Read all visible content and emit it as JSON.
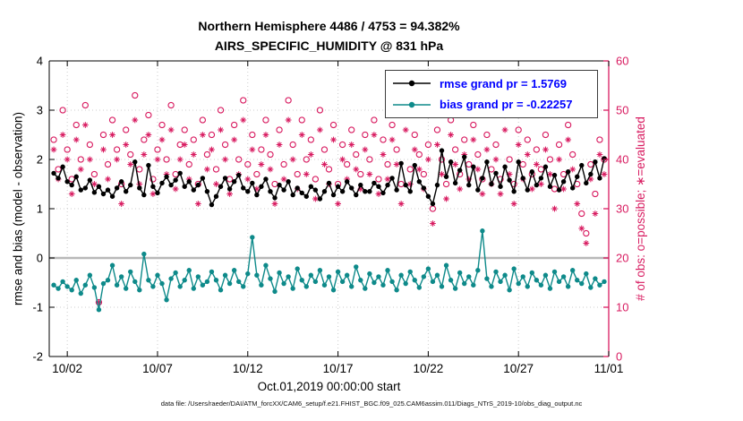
{
  "title": {
    "line1": "Northern Hemisphere 4486 / 4753 = 94.382%",
    "line2": "AIRS_SPECIFIC_HUMIDITY @ 831 hPa"
  },
  "axis_labels": {
    "left": "rmse and bias (model - observation)",
    "right": "# of obs: o=possible; ∗=evaluated",
    "x": "Oct.01,2019 00:00:00 start"
  },
  "legend": {
    "items": [
      {
        "name": "rmse",
        "label": "rmse grand pr = 1.5769"
      },
      {
        "name": "bias",
        "label": "bias grand pr = -0.22257"
      }
    ]
  },
  "footer": {
    "data_file": "data file: /Users/raeder/DAI/ATM_forcXX/CAM6_setup/f.e21.FHIST_BGC.f09_025.CAM6assim.011/Diags_NTrS_2019-10/obs_diag_output.nc"
  },
  "colors": {
    "rmse": "#000000",
    "bias": "#0e8a8a",
    "obs": "#d81b60",
    "legend_text": "#0000ff",
    "zero_line": "#b8b8b8",
    "grid": "#cccccc",
    "axis_black": "#000000"
  },
  "chart_data": {
    "type": "line",
    "title": "Northern Hemisphere 4486 / 4753 = 94.382% — AIRS_SPECIFIC_HUMIDITY @ 831 hPa",
    "x_axis_label": "Oct.01,2019 00:00:00 start",
    "left_y_label": "rmse and bias (model - observation)",
    "right_y_label": "# of obs: o=possible; ∗=evaluated",
    "x_start_day": 1.25,
    "x_step_days": 0.25,
    "x_axis_range_days": [
      1,
      32
    ],
    "x_tick_days": [
      2,
      7,
      12,
      17,
      22,
      27,
      32
    ],
    "x_tick_labels": [
      "10/02",
      "10/07",
      "10/12",
      "10/17",
      "10/22",
      "10/27",
      "11/01"
    ],
    "left_ylim": [
      -2,
      4
    ],
    "left_yticks": [
      -2,
      -1,
      0,
      1,
      2,
      3,
      4
    ],
    "right_ylim": [
      0,
      60
    ],
    "right_yticks": [
      0,
      10,
      20,
      30,
      40,
      50,
      60
    ],
    "grid": true,
    "legend_position": "top-right-inside",
    "summary": {
      "rmse_grand_prior": 1.5769,
      "bias_grand_prior": -0.22257,
      "obs_evaluated_total": 4486,
      "obs_possible_total": 4753,
      "percent_evaluated": 94.382
    },
    "series": [
      {
        "name": "obs_possible",
        "axis": "right",
        "marker": "open-circle",
        "line": false,
        "color": "#d81b60",
        "values": [
          44,
          38,
          50,
          42,
          36,
          47,
          40,
          51,
          43,
          37,
          11,
          45,
          39,
          48,
          42,
          35,
          46,
          41,
          53,
          38,
          44,
          49,
          36,
          42,
          47,
          40,
          51,
          37,
          43,
          46,
          39,
          44,
          35,
          48,
          41,
          45,
          38,
          50,
          43,
          36,
          47,
          40,
          52,
          39,
          45,
          37,
          42,
          48,
          41,
          35,
          46,
          39,
          52,
          43,
          37,
          48,
          40,
          44,
          36,
          50,
          42,
          38,
          47,
          35,
          43,
          39,
          46,
          41,
          37,
          45,
          40,
          48,
          36,
          44,
          39,
          47,
          42,
          35,
          50,
          38,
          45,
          41,
          37,
          43,
          30,
          46,
          40,
          35,
          48,
          42,
          37,
          44,
          39,
          47,
          41,
          36,
          45,
          38,
          43,
          36,
          49,
          40,
          35,
          46,
          39,
          44,
          37,
          42,
          38,
          45,
          40,
          34,
          43,
          37,
          47,
          41,
          35,
          29,
          25,
          39,
          33,
          44,
          40
        ]
      },
      {
        "name": "obs_evaluated",
        "axis": "right",
        "marker": "asterisk",
        "line": false,
        "color": "#d81b60",
        "values": [
          42,
          36,
          45,
          40,
          33,
          44,
          38,
          47,
          40,
          35,
          11,
          42,
          36,
          45,
          40,
          31,
          43,
          39,
          48,
          35,
          41,
          45,
          33,
          40,
          44,
          37,
          46,
          34,
          40,
          43,
          36,
          41,
          31,
          45,
          38,
          42,
          35,
          46,
          40,
          33,
          44,
          37,
          48,
          36,
          42,
          34,
          39,
          45,
          38,
          31,
          43,
          36,
          48,
          40,
          34,
          45,
          37,
          41,
          32,
          46,
          39,
          35,
          44,
          31,
          40,
          36,
          43,
          38,
          34,
          42,
          37,
          45,
          33,
          41,
          36,
          44,
          39,
          31,
          46,
          35,
          42,
          38,
          34,
          40,
          27,
          43,
          37,
          32,
          45,
          39,
          34,
          41,
          36,
          44,
          38,
          33,
          42,
          35,
          40,
          33,
          46,
          37,
          31,
          43,
          36,
          41,
          34,
          39,
          35,
          42,
          37,
          30,
          40,
          34,
          44,
          38,
          31,
          26,
          23,
          36,
          29,
          41,
          37
        ]
      },
      {
        "name": "rmse",
        "axis": "left",
        "marker": "filled-circle",
        "line": true,
        "color": "#000000",
        "values": [
          1.72,
          1.62,
          1.85,
          1.55,
          1.48,
          1.65,
          1.38,
          1.42,
          1.58,
          1.33,
          1.45,
          1.3,
          1.38,
          1.25,
          1.42,
          1.55,
          1.35,
          1.48,
          1.95,
          1.42,
          1.28,
          1.88,
          1.45,
          1.32,
          1.52,
          1.65,
          1.48,
          1.58,
          1.72,
          1.45,
          1.55,
          1.38,
          1.48,
          1.62,
          1.35,
          1.08,
          1.25,
          1.45,
          1.62,
          1.4,
          1.55,
          1.68,
          1.42,
          1.35,
          1.52,
          1.28,
          1.45,
          1.6,
          1.35,
          1.22,
          1.48,
          1.38,
          1.55,
          1.28,
          1.42,
          1.32,
          1.25,
          1.45,
          1.38,
          1.2,
          1.35,
          1.52,
          1.28,
          1.45,
          1.35,
          1.55,
          1.42,
          1.28,
          1.48,
          1.35,
          1.35,
          1.52,
          1.45,
          1.32,
          1.48,
          1.62,
          1.38,
          1.92,
          1.48,
          1.35,
          1.88,
          1.55,
          1.42,
          1.25,
          1.1,
          1.48,
          2.18,
          1.65,
          1.95,
          1.52,
          1.78,
          2.05,
          1.48,
          1.85,
          1.38,
          1.62,
          1.95,
          1.5,
          1.72,
          1.45,
          1.85,
          1.58,
          1.35,
          1.95,
          1.62,
          1.38,
          1.75,
          1.48,
          1.62,
          1.85,
          1.45,
          1.68,
          1.38,
          1.55,
          1.75,
          1.42,
          1.65,
          1.88,
          1.52,
          1.7,
          1.95,
          1.62,
          2.02
        ]
      },
      {
        "name": "bias",
        "axis": "left",
        "marker": "filled-circle",
        "line": true,
        "color": "#0e8a8a",
        "values": [
          -0.55,
          -0.62,
          -0.48,
          -0.58,
          -0.65,
          -0.45,
          -0.72,
          -0.55,
          -0.35,
          -0.6,
          -1.05,
          -0.52,
          -0.45,
          -0.15,
          -0.55,
          -0.38,
          -0.62,
          -0.28,
          -0.48,
          -0.65,
          0.08,
          -0.45,
          -0.58,
          -0.35,
          -0.52,
          -0.85,
          -0.42,
          -0.3,
          -0.58,
          -0.45,
          -0.25,
          -0.62,
          -0.38,
          -0.55,
          -0.48,
          -0.28,
          -0.45,
          -0.65,
          -0.35,
          -0.52,
          -0.25,
          -0.48,
          -0.58,
          -0.32,
          0.42,
          -0.35,
          -0.55,
          -0.15,
          -0.42,
          -0.68,
          -0.3,
          -0.52,
          -0.38,
          -0.62,
          -0.22,
          -0.45,
          -0.58,
          -0.35,
          -0.48,
          -0.25,
          -0.55,
          -0.38,
          -0.65,
          -0.28,
          -0.48,
          -0.35,
          -0.58,
          -0.18,
          -0.45,
          -0.62,
          -0.32,
          -0.5,
          -0.38,
          -0.55,
          -0.25,
          -0.48,
          -0.65,
          -0.35,
          -0.52,
          -0.28,
          -0.45,
          -0.6,
          -0.38,
          -0.22,
          -0.48,
          -0.35,
          -0.58,
          -0.15,
          -0.45,
          -0.62,
          -0.3,
          -0.52,
          -0.38,
          -0.55,
          -0.25,
          0.55,
          -0.42,
          -0.58,
          -0.28,
          -0.48,
          -0.35,
          -0.65,
          -0.22,
          -0.52,
          -0.38,
          -0.58,
          -0.3,
          -0.45,
          -0.55,
          -0.35,
          -0.62,
          -0.28,
          -0.48,
          -0.38,
          -0.58,
          -0.25,
          -0.45,
          -0.52,
          -0.32,
          -0.6,
          -0.42,
          -0.55,
          -0.48
        ]
      }
    ]
  }
}
